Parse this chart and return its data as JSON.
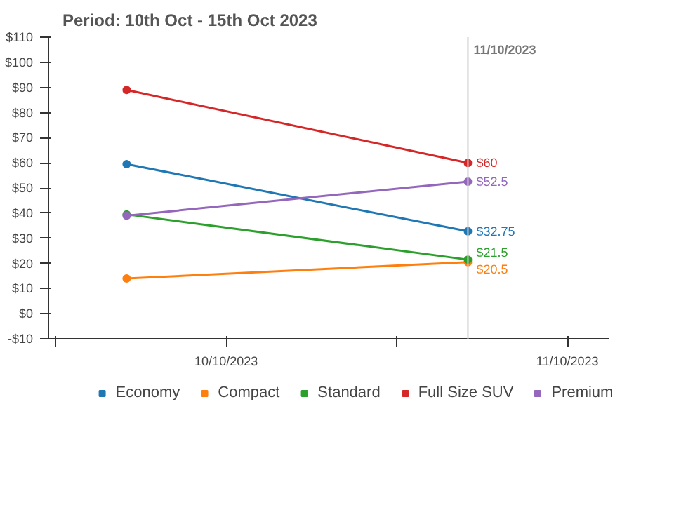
{
  "chart_data": {
    "type": "line",
    "title": "Period: 10th Oct - 15th Oct 2023",
    "x": [
      "2023-10-10T05:00",
      "2023-10-11T05:00"
    ],
    "xlim": [
      "2023-10-09T23:30",
      "2023-10-11T15:00"
    ],
    "xticks": [
      {
        "value": "2023-10-10T00:00",
        "label": null
      },
      {
        "value": "2023-10-10T12:00",
        "label": "10/10/2023"
      },
      {
        "value": "2023-10-11T00:00",
        "label": null
      },
      {
        "value": "2023-10-11T12:00",
        "label": "11/10/2023"
      }
    ],
    "ylim": [
      -10,
      110
    ],
    "yticks": [
      {
        "value": -10,
        "label": "-$10"
      },
      {
        "value": 0,
        "label": "$0"
      },
      {
        "value": 10,
        "label": "$10"
      },
      {
        "value": 20,
        "label": "$20"
      },
      {
        "value": 30,
        "label": "$30"
      },
      {
        "value": 40,
        "label": "$40"
      },
      {
        "value": 50,
        "label": "$50"
      },
      {
        "value": 60,
        "label": "$60"
      },
      {
        "value": 70,
        "label": "$70"
      },
      {
        "value": 80,
        "label": "$80"
      },
      {
        "value": 90,
        "label": "$90"
      },
      {
        "value": 100,
        "label": "$100"
      },
      {
        "value": 110,
        "label": "$110"
      }
    ],
    "series": [
      {
        "name": "Economy",
        "color": "#1f77b4",
        "values": [
          59.5,
          32.75
        ],
        "value_labels": [
          null,
          "$32.75"
        ]
      },
      {
        "name": "Compact",
        "color": "#ff7f0e",
        "values": [
          14,
          20.5
        ],
        "value_labels": [
          null,
          "$20.5"
        ]
      },
      {
        "name": "Standard",
        "color": "#2ca02c",
        "values": [
          39.5,
          21.5
        ],
        "value_labels": [
          null,
          "$21.5"
        ]
      },
      {
        "name": "Full Size SUV",
        "color": "#d62728",
        "values": [
          89,
          60
        ],
        "value_labels": [
          null,
          "$60"
        ]
      },
      {
        "name": "Premium",
        "color": "#9467bd",
        "values": [
          39,
          52.5
        ],
        "value_labels": [
          null,
          "$52.5"
        ]
      }
    ],
    "ref_lines": [
      {
        "axis": "x",
        "value": "2023-10-11T05:00",
        "label": "11/10/2023",
        "color": "#cccccc"
      }
    ],
    "marker": "circle",
    "line_style": "solid",
    "grid": false,
    "legend": "bottom"
  }
}
